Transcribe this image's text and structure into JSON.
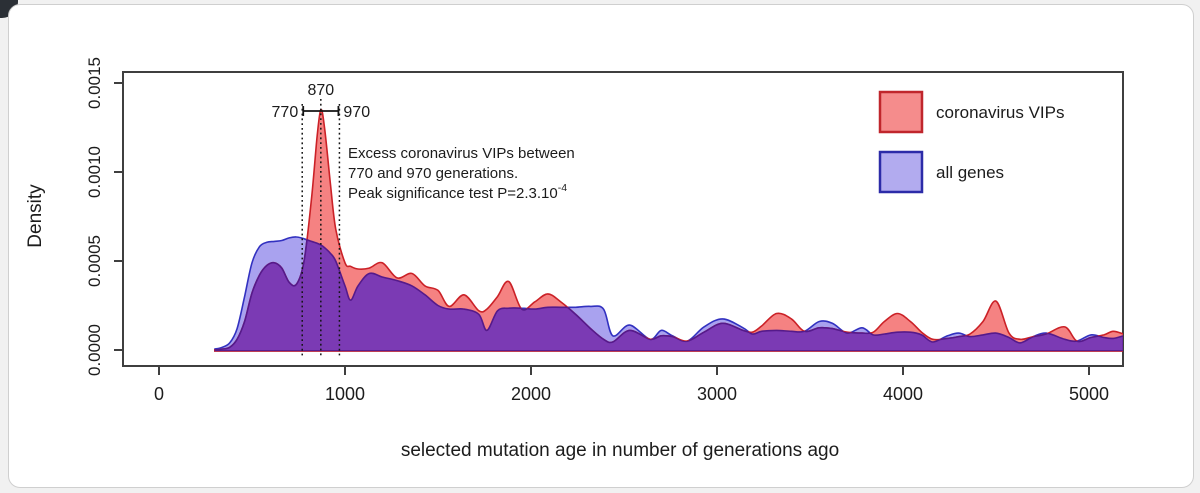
{
  "chart_data": {
    "type": "area",
    "title": "",
    "xlabel": "selected mutation age in number of generations ago",
    "ylabel": "Density",
    "xlim": [
      -200,
      5200
    ],
    "ylim": [
      0,
      0.00156
    ],
    "grid": "off",
    "legend_position": "top-right-inside",
    "xtick_labels": [
      "0",
      "1000",
      "2000",
      "3000",
      "4000",
      "5000"
    ],
    "xtick_values": [
      0,
      1000,
      2000,
      3000,
      4000,
      5000
    ],
    "ytick_labels": [
      "0.0000",
      "0.0005",
      "0.0010",
      "0.0015"
    ],
    "ytick_values": [
      0,
      0.0005,
      0.001,
      0.0015
    ],
    "value_unit": "density in units of 1e-4",
    "x_gen": [
      300,
      340,
      380,
      420,
      460,
      500,
      540,
      580,
      620,
      660,
      700,
      740,
      780,
      820,
      850,
      870,
      890,
      920,
      950,
      1000,
      1030,
      1070,
      1130,
      1200,
      1280,
      1360,
      1430,
      1500,
      1560,
      1640,
      1720,
      1763,
      1820,
      1880,
      1950,
      2020,
      2090,
      2160,
      2240,
      2320,
      2390,
      2440,
      2530,
      2640,
      2700,
      2760,
      2840,
      2930,
      3030,
      3140,
      3190,
      3240,
      3320,
      3400,
      3470,
      3550,
      3620,
      3700,
      3780,
      3840,
      3900,
      3970,
      4040,
      4100,
      4160,
      4240,
      4300,
      4360,
      4430,
      4500,
      4570,
      4630,
      4700,
      4770,
      4870,
      4935,
      5010,
      5080,
      5130,
      5185
    ],
    "series": [
      {
        "name": "coronavirus VIPs",
        "fill": "#f58282",
        "stroke": "#cb2127",
        "values": [
          0.0,
          0.05,
          0.15,
          0.6,
          1.6,
          3.2,
          4.2,
          4.75,
          4.9,
          4.6,
          3.8,
          3.7,
          5.0,
          8.5,
          12.0,
          13.5,
          12.5,
          9.5,
          6.8,
          4.9,
          4.7,
          4.55,
          4.6,
          4.9,
          4.05,
          4.3,
          3.6,
          3.35,
          2.45,
          3.1,
          2.2,
          2.3,
          3.0,
          3.85,
          2.3,
          2.7,
          3.15,
          2.7,
          2.0,
          1.2,
          0.6,
          0.45,
          1.1,
          0.6,
          0.8,
          0.75,
          0.5,
          1.0,
          1.5,
          1.1,
          1.0,
          1.35,
          2.05,
          1.75,
          1.05,
          1.25,
          1.2,
          1.0,
          0.95,
          1.0,
          1.6,
          2.05,
          1.6,
          1.0,
          0.6,
          0.65,
          0.75,
          0.9,
          1.6,
          2.75,
          0.95,
          0.6,
          0.75,
          0.9,
          1.3,
          0.5,
          0.7,
          0.85,
          1.05,
          0.9
        ]
      },
      {
        "name": "all genes",
        "fill": "#a9a2ef",
        "stroke": "#3231c0",
        "values": [
          0.05,
          0.15,
          0.4,
          1.2,
          3.0,
          4.9,
          5.8,
          6.05,
          6.1,
          6.15,
          6.3,
          6.35,
          6.25,
          6.1,
          6.0,
          5.9,
          5.75,
          5.45,
          5.0,
          3.6,
          2.8,
          3.6,
          4.3,
          4.1,
          3.9,
          3.6,
          3.1,
          2.5,
          2.3,
          2.3,
          2.0,
          1.1,
          2.2,
          2.35,
          2.35,
          2.3,
          2.4,
          2.4,
          2.4,
          2.45,
          2.3,
          0.8,
          1.4,
          0.6,
          1.1,
          0.8,
          0.5,
          1.3,
          1.75,
          1.25,
          0.9,
          1.05,
          1.1,
          1.05,
          1.05,
          1.6,
          1.5,
          0.95,
          1.25,
          0.85,
          0.9,
          1.0,
          1.0,
          0.85,
          0.45,
          0.8,
          0.95,
          0.75,
          0.85,
          0.95,
          0.7,
          0.4,
          0.75,
          0.95,
          0.6,
          0.5,
          0.85,
          0.7,
          0.65,
          0.8
        ]
      }
    ],
    "overlap_fill": "#7b3ab4",
    "overlap_stroke": "#551a8b",
    "peak": {
      "value_gen": 870,
      "density": 0.00135
    },
    "annotation": {
      "peak_label": "870",
      "low_label": "770",
      "high_label": "970",
      "peak_gen": 870,
      "low_gen": 770,
      "high_gen": 970,
      "text_line1": "Excess coronavirus VIPs between",
      "text_line2": "770 and 970 generations.",
      "text_line3_prefix": "Peak significance test P=2.3.10",
      "text_line3_sup": "-4"
    },
    "legend": {
      "items": [
        {
          "label": "coronavirus VIPs",
          "fill": "#f58c8c",
          "stroke": "#c0262c"
        },
        {
          "label": "all genes",
          "fill": "#b2abef",
          "stroke": "#2c2ba8"
        }
      ]
    }
  }
}
